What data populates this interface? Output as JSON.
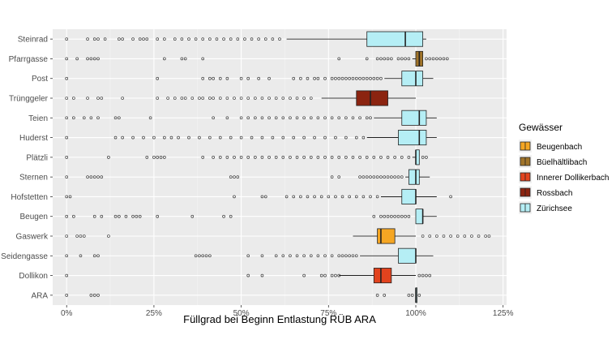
{
  "chart_data": {
    "type": "boxplot",
    "orientation": "horizontal",
    "xlabel": "Füllgrad bei Beginn Entlastung RÜB ARA",
    "ylabel": "",
    "xlim": [
      -0.04,
      1.26
    ],
    "xticks": [
      0,
      0.25,
      0.5,
      0.75,
      1.0,
      1.25
    ],
    "xtick_labels": [
      "0%",
      "25%",
      "50%",
      "75%",
      "100%",
      "125%"
    ],
    "grid": true,
    "legend": {
      "title": "Gewässer",
      "position": "right",
      "entries": [
        {
          "name": "Beugenbach",
          "color": "#F5A623"
        },
        {
          "name": "Büelhältlibach",
          "color": "#A0742A"
        },
        {
          "name": "Innerer Dollikerbach",
          "color": "#E2431E"
        },
        {
          "name": "Rossbach",
          "color": "#8B2410"
        },
        {
          "name": "Zürichsee",
          "color": "#B5EEF5"
        }
      ]
    },
    "categories": [
      "Steinrad",
      "Pfarrgasse",
      "Post",
      "Trünggeler",
      "Teien",
      "Huderst",
      "Plätzli",
      "Sternen",
      "Hofstetten",
      "Beugen",
      "Gaswerk",
      "Seidengasse",
      "Dollikon",
      "ARA"
    ],
    "series": [
      {
        "name": "Steinrad",
        "group": "Zürichsee",
        "whisker_low": 0.63,
        "q1": 0.86,
        "median": 0.97,
        "q3": 1.02,
        "whisker_high": 1.03,
        "outliers": [
          0.0,
          0.06,
          0.08,
          0.09,
          0.11,
          0.15,
          0.16,
          0.19,
          0.21,
          0.22,
          0.23,
          0.26,
          0.28,
          0.31,
          0.33,
          0.35,
          0.37,
          0.39,
          0.41,
          0.43,
          0.45,
          0.47,
          0.49,
          0.51,
          0.53,
          0.55,
          0.57,
          0.59,
          0.61
        ]
      },
      {
        "name": "Pfarrgasse",
        "group": "Büelhältlibach",
        "whisker_low": 0.99,
        "q1": 1.0,
        "median": 1.01,
        "q3": 1.02,
        "whisker_high": 1.02,
        "outliers": [
          0.0,
          0.03,
          0.06,
          0.07,
          0.08,
          0.09,
          0.28,
          0.33,
          0.34,
          0.39,
          0.78,
          0.86,
          0.89,
          0.9,
          0.91,
          0.92,
          0.93,
          0.95,
          0.96,
          0.97,
          0.98,
          1.03,
          1.04,
          1.05,
          1.06,
          1.07,
          1.08,
          1.09
        ]
      },
      {
        "name": "Post",
        "group": "Zürichsee",
        "whisker_low": 0.91,
        "q1": 0.96,
        "median": 1.0,
        "q3": 1.02,
        "whisker_high": 1.05,
        "outliers": [
          0.0,
          0.26,
          0.39,
          0.41,
          0.42,
          0.44,
          0.46,
          0.5,
          0.52,
          0.55,
          0.58,
          0.65,
          0.67,
          0.69,
          0.71,
          0.72,
          0.74,
          0.76,
          0.77,
          0.78,
          0.79,
          0.8,
          0.81,
          0.82,
          0.83,
          0.84,
          0.85,
          0.86,
          0.87,
          0.88,
          0.89,
          0.9
        ]
      },
      {
        "name": "Trünggeler",
        "group": "Rossbach",
        "whisker_low": 0.73,
        "q1": 0.83,
        "median": 0.87,
        "q3": 0.92,
        "whisker_high": 1.0,
        "outliers": [
          0.0,
          0.02,
          0.06,
          0.09,
          0.1,
          0.16,
          0.26,
          0.29,
          0.31,
          0.33,
          0.34,
          0.36,
          0.38,
          0.39,
          0.41,
          0.42,
          0.44,
          0.46,
          0.48,
          0.5,
          0.52,
          0.54,
          0.56,
          0.58,
          0.6,
          0.62,
          0.64,
          0.66,
          0.68,
          0.7
        ]
      },
      {
        "name": "Teien",
        "group": "Zürichsee",
        "whisker_low": 0.88,
        "q1": 0.96,
        "median": 1.01,
        "q3": 1.03,
        "whisker_high": 1.06,
        "outliers": [
          0.0,
          0.02,
          0.05,
          0.07,
          0.09,
          0.14,
          0.15,
          0.24,
          0.42,
          0.46,
          0.5,
          0.52,
          0.54,
          0.56,
          0.58,
          0.6,
          0.62,
          0.64,
          0.66,
          0.68,
          0.7,
          0.72,
          0.74,
          0.76,
          0.78,
          0.8,
          0.82,
          0.84,
          0.86,
          0.87
        ]
      },
      {
        "name": "Huderst",
        "group": "Zürichsee",
        "whisker_low": 0.86,
        "q1": 0.95,
        "median": 1.01,
        "q3": 1.03,
        "whisker_high": 1.06,
        "outliers": [
          0.0,
          0.14,
          0.16,
          0.19,
          0.22,
          0.25,
          0.28,
          0.3,
          0.32,
          0.35,
          0.38,
          0.41,
          0.44,
          0.47,
          0.5,
          0.53,
          0.56,
          0.59,
          0.62,
          0.65,
          0.68,
          0.71,
          0.74,
          0.77,
          0.8,
          0.83,
          0.85
        ]
      },
      {
        "name": "Plätzli",
        "group": "Zürichsee",
        "whisker_low": 0.99,
        "q1": 1.0,
        "median": 1.0,
        "q3": 1.01,
        "whisker_high": 1.01,
        "outliers": [
          0.0,
          0.12,
          0.23,
          0.25,
          0.26,
          0.27,
          0.28,
          0.39,
          0.42,
          0.44,
          0.46,
          0.48,
          0.5,
          0.52,
          0.54,
          0.56,
          0.58,
          0.6,
          0.62,
          0.64,
          0.66,
          0.68,
          0.7,
          0.72,
          0.74,
          0.76,
          0.78,
          0.8,
          0.82,
          0.84,
          0.86,
          0.88,
          0.9,
          0.92,
          0.94,
          0.96,
          0.98,
          1.02,
          1.03
        ]
      },
      {
        "name": "Sternen",
        "group": "Zürichsee",
        "whisker_low": 0.97,
        "q1": 0.98,
        "median": 1.0,
        "q3": 1.01,
        "whisker_high": 1.04,
        "outliers": [
          0.0,
          0.06,
          0.07,
          0.08,
          0.09,
          0.1,
          0.47,
          0.48,
          0.49,
          0.76,
          0.78,
          0.84,
          0.85,
          0.86,
          0.87,
          0.88,
          0.89,
          0.9,
          0.91,
          0.92,
          0.93,
          0.94,
          0.95,
          0.96
        ]
      },
      {
        "name": "Hofstetten",
        "group": "Zürichsee",
        "whisker_low": 0.9,
        "q1": 0.96,
        "median": 1.0,
        "q3": 1.0,
        "whisker_high": 1.06,
        "outliers": [
          0.0,
          0.01,
          0.48,
          0.56,
          0.57,
          0.63,
          0.65,
          0.67,
          0.69,
          0.71,
          0.73,
          0.75,
          0.77,
          0.79,
          0.81,
          0.83,
          0.85,
          0.87,
          0.89,
          1.1
        ]
      },
      {
        "name": "Beugen",
        "group": "Zürichsee",
        "whisker_low": 1.0,
        "q1": 1.0,
        "median": 1.02,
        "q3": 1.02,
        "whisker_high": 1.06,
        "outliers": [
          0.0,
          0.02,
          0.08,
          0.1,
          0.14,
          0.15,
          0.17,
          0.19,
          0.2,
          0.21,
          0.26,
          0.36,
          0.45,
          0.47,
          0.88,
          0.9,
          0.91,
          0.92,
          0.93,
          0.94,
          0.95,
          0.96,
          0.97,
          0.98
        ]
      },
      {
        "name": "Gaswerk",
        "group": "Beugenbach",
        "whisker_low": 0.82,
        "q1": 0.89,
        "median": 0.9,
        "q3": 0.94,
        "whisker_high": 1.0,
        "outliers": [
          0.0,
          0.03,
          0.04,
          0.05,
          0.12,
          1.02,
          1.04,
          1.06,
          1.08,
          1.1,
          1.12,
          1.14,
          1.16,
          1.18,
          1.2,
          1.21
        ]
      },
      {
        "name": "Seidengasse",
        "group": "Zürichsee",
        "whisker_low": 0.84,
        "q1": 0.95,
        "median": 1.0,
        "q3": 1.0,
        "whisker_high": 1.05,
        "outliers": [
          0.0,
          0.04,
          0.08,
          0.09,
          0.37,
          0.38,
          0.39,
          0.4,
          0.41,
          0.52,
          0.56,
          0.6,
          0.62,
          0.64,
          0.66,
          0.68,
          0.7,
          0.72,
          0.74,
          0.76,
          0.78,
          0.79,
          0.8,
          0.81,
          0.82,
          0.83
        ]
      },
      {
        "name": "Dollikon",
        "group": "Innerer Dollikerbach",
        "whisker_low": 0.78,
        "q1": 0.88,
        "median": 0.9,
        "q3": 0.93,
        "whisker_high": 1.0,
        "outliers": [
          0.0,
          0.52,
          0.56,
          0.68,
          0.73,
          0.74,
          0.76,
          0.77,
          0.78,
          1.01,
          1.02,
          1.03,
          1.04
        ]
      },
      {
        "name": "ARA",
        "group": "Zürichsee",
        "whisker_low": 1.0,
        "q1": 1.0,
        "median": 1.0,
        "q3": 1.0,
        "whisker_high": 1.0,
        "outliers": [
          0.0,
          0.07,
          0.08,
          0.09,
          0.89,
          0.91,
          0.98,
          0.99,
          1.01
        ]
      }
    ]
  }
}
